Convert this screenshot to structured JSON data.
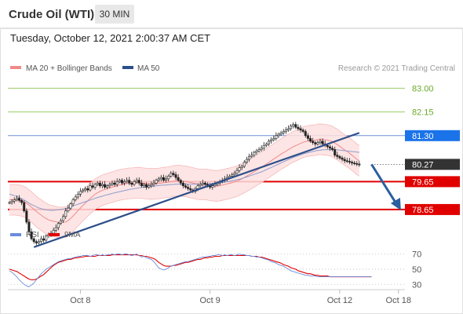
{
  "header": {
    "instrument": "Crude Oil (WTI)",
    "timeframe": "30 MIN",
    "datetime": "Tuesday, October 12, 2021 2:00:37 AM CET"
  },
  "colors": {
    "ma20": "#f08a8a",
    "ma50": "#2c4e8a",
    "bollinger_fill": "#fde0e0",
    "trendline": "#2c4e8a",
    "projection_arrow": "#2a5fa0",
    "resistance_line": "#9ccc65",
    "support_line": "#e00000",
    "pivot_line": "#6f8fd8",
    "label_green_text": "#6aaa2a",
    "label_blue_bg": "#1a73e8",
    "label_current_bg": "#333333",
    "label_red_bg": "#e00000",
    "candle": "#222222",
    "rsi": "#6a8cdc",
    "rsi_ma": "#e00000"
  },
  "chart_data": [
    {
      "type": "candlestick",
      "legend": [
        {
          "label": "MA 20 + Bollinger Bands",
          "color": "#f08a8a"
        },
        {
          "label": "MA 50",
          "color": "#2c4e8a"
        }
      ],
      "watermark": "Research © 2021 Trading Central",
      "ylim": [
        78.0,
        83.35
      ],
      "x_ticks": [
        {
          "label": "Oct 8",
          "index": 29
        },
        {
          "label": "Oct 9",
          "index": 82
        },
        {
          "label": "Oct 12",
          "index": 135
        },
        {
          "label": "Oct 18",
          "index": 159
        }
      ],
      "x_count": 162,
      "levels": [
        {
          "value": 83.0,
          "label": "83.00",
          "kind": "resistance"
        },
        {
          "value": 82.15,
          "label": "82.15",
          "kind": "resistance"
        },
        {
          "value": 81.3,
          "label": "81.30",
          "kind": "pivot"
        },
        {
          "value": 80.27,
          "label": "80.27",
          "kind": "current"
        },
        {
          "value": 79.65,
          "label": "79.65",
          "kind": "support"
        },
        {
          "value": 78.65,
          "label": "78.65",
          "kind": "support"
        }
      ],
      "close": [
        78.9,
        78.95,
        79.0,
        79.05,
        78.98,
        78.9,
        78.6,
        78.2,
        77.85,
        77.6,
        77.5,
        77.45,
        77.5,
        77.6,
        77.55,
        77.7,
        77.75,
        77.8,
        77.9,
        78.0,
        78.15,
        78.25,
        78.4,
        78.6,
        78.7,
        78.85,
        79.0,
        79.1,
        79.2,
        79.3,
        79.35,
        79.4,
        79.35,
        79.5,
        79.45,
        79.55,
        79.6,
        79.5,
        79.55,
        79.45,
        79.5,
        79.55,
        79.6,
        79.55,
        79.65,
        79.7,
        79.6,
        79.65,
        79.7,
        79.6,
        79.55,
        79.65,
        79.7,
        79.6,
        79.5,
        79.55,
        79.45,
        79.5,
        79.55,
        79.6,
        79.7,
        79.75,
        79.8,
        79.7,
        79.75,
        79.85,
        79.95,
        79.9,
        79.8,
        79.7,
        79.6,
        79.5,
        79.45,
        79.4,
        79.35,
        79.3,
        79.4,
        79.5,
        79.55,
        79.6,
        79.55,
        79.5,
        79.45,
        79.5,
        79.55,
        79.6,
        79.65,
        79.7,
        79.75,
        79.8,
        79.85,
        79.9,
        79.95,
        80.05,
        80.15,
        80.2,
        80.35,
        80.45,
        80.55,
        80.6,
        80.7,
        80.75,
        80.8,
        80.85,
        80.95,
        81.0,
        81.1,
        81.15,
        81.2,
        81.3,
        81.35,
        81.4,
        81.45,
        81.5,
        81.55,
        81.65,
        81.7,
        81.6,
        81.55,
        81.5,
        81.45,
        81.3,
        81.2,
        81.1,
        81.05,
        81.0,
        81.05,
        81.1,
        81.0,
        80.95,
        80.9,
        80.85,
        80.8,
        80.6,
        80.55,
        80.5,
        80.45,
        80.4,
        80.38,
        80.35,
        80.32,
        80.3,
        80.28,
        80.27
      ],
      "ma20": [
        79.0,
        79.0,
        79.0,
        78.99,
        78.98,
        78.96,
        78.93,
        78.88,
        78.81,
        78.74,
        78.66,
        78.58,
        78.51,
        78.45,
        78.38,
        78.33,
        78.28,
        78.25,
        78.23,
        78.21,
        78.19,
        78.18,
        78.19,
        78.2,
        78.26,
        78.33,
        78.42,
        78.51,
        78.61,
        78.7,
        78.79,
        78.88,
        78.96,
        79.05,
        79.12,
        79.2,
        79.25,
        79.3,
        79.34,
        79.37,
        79.4,
        79.43,
        79.45,
        79.48,
        79.51,
        79.53,
        79.55,
        79.56,
        79.58,
        79.59,
        79.59,
        79.6,
        79.61,
        79.61,
        79.6,
        79.59,
        79.58,
        79.57,
        79.57,
        79.57,
        79.58,
        79.58,
        79.6,
        79.61,
        79.62,
        79.63,
        79.65,
        79.67,
        79.68,
        79.69,
        79.68,
        79.67,
        79.66,
        79.64,
        79.62,
        79.6,
        79.58,
        79.56,
        79.55,
        79.55,
        79.55,
        79.54,
        79.52,
        79.51,
        79.5,
        79.5,
        79.51,
        79.53,
        79.55,
        79.57,
        79.59,
        79.61,
        79.64,
        79.67,
        79.71,
        79.75,
        79.8,
        79.85,
        79.9,
        79.95,
        80.0,
        80.06,
        80.11,
        80.16,
        80.22,
        80.28,
        80.34,
        80.4,
        80.46,
        80.52,
        80.58,
        80.64,
        80.69,
        80.74,
        80.8,
        80.85,
        80.9,
        80.94,
        80.98,
        81.02,
        81.06,
        81.09,
        81.11,
        81.12,
        81.13,
        81.14,
        81.16,
        81.17,
        81.16,
        81.15,
        81.14,
        81.12,
        81.09,
        81.03,
        80.98,
        80.92,
        80.85,
        80.79,
        80.73,
        80.67,
        80.6,
        80.53,
        80.45,
        80.4
      ],
      "bb_width": 0.55,
      "ma50": [
        79.2,
        79.18,
        79.15,
        79.12,
        79.08,
        79.04,
        78.99,
        78.94,
        78.88,
        78.83,
        78.79,
        78.75,
        78.71,
        78.68,
        78.66,
        78.64,
        78.63,
        78.62,
        78.62,
        78.63,
        78.64,
        78.65,
        78.67,
        78.69,
        78.72,
        78.75,
        78.78,
        78.81,
        78.84,
        78.87,
        78.9,
        78.93,
        78.96,
        78.99,
        79.02,
        79.05,
        79.08,
        79.11,
        79.13,
        79.16,
        79.18,
        79.2,
        79.23,
        79.25,
        79.27,
        79.29,
        79.31,
        79.33,
        79.35,
        79.37,
        79.38,
        79.4,
        79.41,
        79.43,
        79.44,
        79.45,
        79.46,
        79.47,
        79.48,
        79.49,
        79.5,
        79.51,
        79.52,
        79.53,
        79.53,
        79.54,
        79.55,
        79.55,
        79.56,
        79.56,
        79.56,
        79.56,
        79.56,
        79.56,
        79.56,
        79.56,
        79.56,
        79.56,
        79.56,
        79.57,
        79.57,
        79.57,
        79.58,
        79.58,
        79.59,
        79.6,
        79.61,
        79.62,
        79.63,
        79.65,
        79.66,
        79.68,
        79.7,
        79.72,
        79.74,
        79.76,
        79.79,
        79.82,
        79.85,
        79.88,
        79.91,
        79.94,
        79.97,
        80.0,
        80.04,
        80.08,
        80.12,
        80.16,
        80.2,
        80.24,
        80.28,
        80.32,
        80.36,
        80.4,
        80.44,
        80.48,
        80.52,
        80.55,
        80.58,
        80.61,
        80.64,
        80.67,
        80.69,
        80.71,
        80.73,
        80.75,
        80.77,
        80.78,
        80.79,
        80.8,
        80.8,
        80.8,
        80.8,
        80.8,
        80.79,
        80.78,
        80.77,
        80.76,
        80.75,
        80.74,
        80.73,
        80.72,
        80.71,
        80.7
      ],
      "trendline": {
        "from": [
          10,
          77.3
        ],
        "to": [
          143,
          81.4
        ]
      },
      "projection": {
        "from": [
          148,
          80.27
        ],
        "to": [
          160,
          78.65
        ]
      }
    },
    {
      "type": "line",
      "legend": [
        {
          "label": "RSI",
          "color": "#6a8cdc"
        },
        {
          "label": "9MA",
          "color": "#e00000"
        }
      ],
      "ylim": [
        22,
        82
      ],
      "y_ticks": [
        70,
        50,
        30
      ],
      "series": [
        {
          "name": "RSI",
          "values": [
            48,
            46,
            43,
            40,
            36,
            33,
            30,
            28,
            27,
            29,
            32,
            36,
            40,
            44,
            47,
            50,
            52,
            54,
            56,
            58,
            60,
            61,
            62,
            63,
            64,
            64,
            65,
            66,
            67,
            67,
            68,
            68,
            68,
            67,
            68,
            69,
            69,
            68,
            69,
            68,
            69,
            69,
            70,
            69,
            70,
            70,
            69,
            70,
            70,
            69,
            68,
            69,
            70,
            68,
            66,
            67,
            65,
            64,
            63,
            60,
            56,
            52,
            50,
            49,
            50,
            52,
            54,
            55,
            56,
            57,
            58,
            59,
            60,
            60,
            61,
            62,
            63,
            64,
            65,
            66,
            66,
            67,
            67,
            68,
            68,
            69,
            69,
            68,
            69,
            68,
            69,
            69,
            68,
            69,
            70,
            69,
            69,
            68,
            68,
            67,
            67,
            66,
            66,
            65,
            64,
            63,
            62,
            60,
            59,
            58,
            56,
            55,
            54,
            52,
            50,
            48,
            47,
            46,
            45,
            44,
            43,
            42,
            42,
            41,
            41,
            41,
            40,
            40,
            40,
            40,
            40,
            40,
            40,
            40,
            40,
            40,
            40,
            40,
            40,
            40,
            40,
            40,
            40,
            40,
            40,
            40,
            40,
            40,
            40
          ]
        },
        {
          "name": "9MA",
          "values": [
            50,
            49,
            48,
            47,
            45,
            43,
            41,
            39,
            37,
            36,
            36,
            37,
            39,
            41,
            43,
            46,
            49,
            52,
            55,
            57,
            59,
            60,
            61,
            62,
            63,
            63,
            64,
            65,
            65,
            66,
            66,
            67,
            67,
            67,
            67,
            67,
            68,
            68,
            68,
            68,
            68,
            68,
            69,
            69,
            69,
            69,
            69,
            69,
            69,
            69,
            69,
            69,
            69,
            68,
            68,
            67,
            67,
            66,
            65,
            64,
            62,
            59,
            57,
            55,
            54,
            54,
            54,
            55,
            55,
            56,
            57,
            58,
            59,
            59,
            60,
            61,
            62,
            63,
            63,
            64,
            65,
            65,
            66,
            66,
            67,
            67,
            67,
            68,
            68,
            68,
            68,
            68,
            68,
            68,
            68,
            68,
            68,
            68,
            68,
            67,
            67,
            67,
            66,
            66,
            65,
            64,
            63,
            62,
            61,
            60,
            59,
            58,
            56,
            55,
            54,
            52,
            51,
            50,
            48,
            47,
            46,
            45,
            44,
            44,
            43,
            42,
            42,
            41,
            41,
            41,
            41,
            40,
            40,
            40,
            40,
            40,
            40,
            40,
            40,
            40,
            40,
            40,
            40,
            40,
            40,
            40,
            40,
            40,
            40
          ]
        }
      ]
    }
  ]
}
